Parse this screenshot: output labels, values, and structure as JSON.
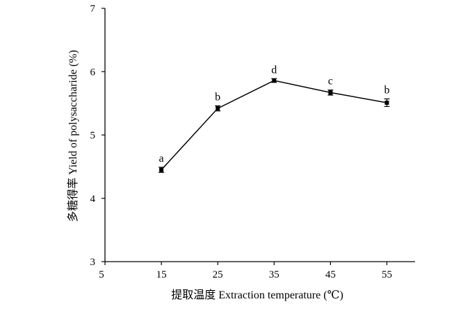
{
  "chart_data": {
    "type": "line",
    "x": [
      15,
      25,
      35,
      45,
      55
    ],
    "series": [
      {
        "values": [
          4.45,
          5.42,
          5.86,
          5.67,
          5.51
        ],
        "errors": [
          0.04,
          0.04,
          0.03,
          0.04,
          0.06
        ],
        "labels": [
          "a",
          "b",
          "d",
          "c",
          "b"
        ]
      }
    ],
    "xlabel": "提取温度 Extraction temperature (℃)",
    "ylabel": "多糖得率 Yield of polysaccharide (%)",
    "xlim": [
      5,
      60
    ],
    "ylim": [
      3,
      7
    ],
    "xticks": [
      5,
      15,
      25,
      35,
      45,
      55
    ],
    "yticks": [
      3,
      4,
      5,
      6,
      7
    ],
    "grid": false,
    "line_color": "#000000",
    "marker": "square"
  }
}
